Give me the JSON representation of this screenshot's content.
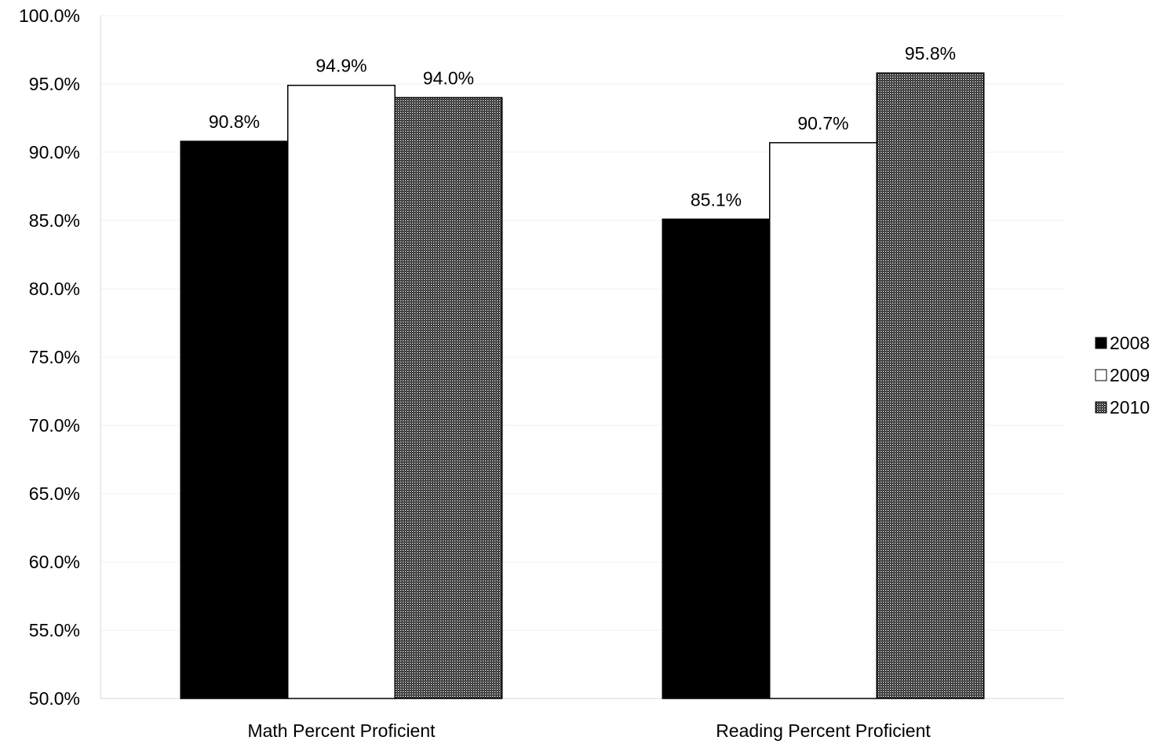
{
  "chart_data": {
    "type": "bar",
    "title": "",
    "xlabel": "",
    "ylabel": "",
    "categories": [
      "Math Percent Proficient",
      "Reading Percent Proficient"
    ],
    "series": [
      {
        "name": "2008",
        "values": [
          90.8,
          85.1
        ],
        "labels": [
          "90.8%",
          "85.1%"
        ],
        "fill": "solid-black"
      },
      {
        "name": "2009",
        "values": [
          94.9,
          90.7
        ],
        "labels": [
          "94.9%",
          "90.7%"
        ],
        "fill": "white"
      },
      {
        "name": "2010",
        "values": [
          94.0,
          95.8
        ],
        "labels": [
          "94.0%",
          "95.8%"
        ],
        "fill": "gray-pattern"
      }
    ],
    "ylim": [
      50,
      100
    ],
    "yticks": [
      50,
      55,
      60,
      65,
      70,
      75,
      80,
      85,
      90,
      95,
      100
    ],
    "ytick_labels": [
      "50.0%",
      "55.0%",
      "60.0%",
      "65.0%",
      "70.0%",
      "75.0%",
      "80.0%",
      "85.0%",
      "90.0%",
      "95.0%",
      "100.0%"
    ],
    "grid": true,
    "legend": "right",
    "colors": {
      "2008": "#000000",
      "2009": "#ffffff",
      "2010": "#9a9a9a",
      "bar_stroke": "#000000"
    }
  }
}
